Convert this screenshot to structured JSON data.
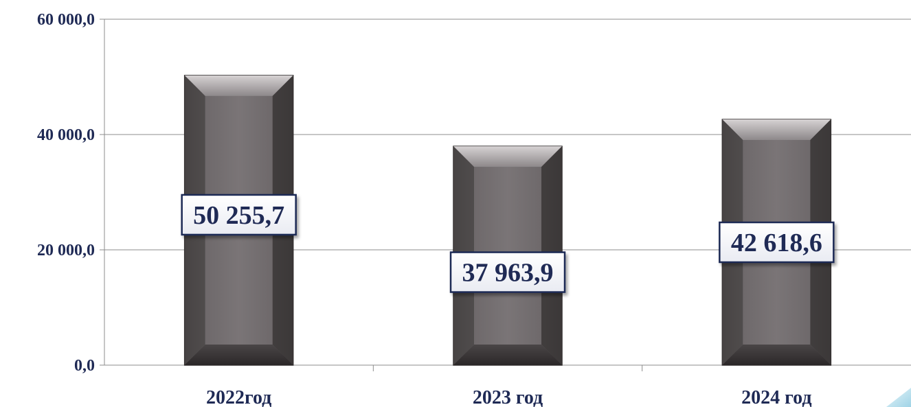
{
  "chart_data": {
    "type": "bar",
    "categories": [
      "2022год",
      "2023 год",
      "2024 год"
    ],
    "values": [
      50255.7,
      37963.9,
      42618.6
    ],
    "value_labels": [
      "50 255,7",
      "37 963,9",
      "42 618,6"
    ],
    "ytick_values": [
      0,
      20000,
      40000,
      60000
    ],
    "ytick_labels": [
      "0,0",
      "20 000,0",
      "40 000,0",
      "60 000,0"
    ],
    "ylim": [
      0,
      60000
    ],
    "grid": true,
    "legend": "none",
    "colors": {
      "bar": "#6a6567",
      "bar_highlight": "#a9a4a6",
      "bar_shadow": "#2f2b2c",
      "label_border": "#1f2a55",
      "text": "#1f2a55",
      "grid": "#8c8c8c",
      "corner_accent": "#bfe3ef"
    }
  }
}
